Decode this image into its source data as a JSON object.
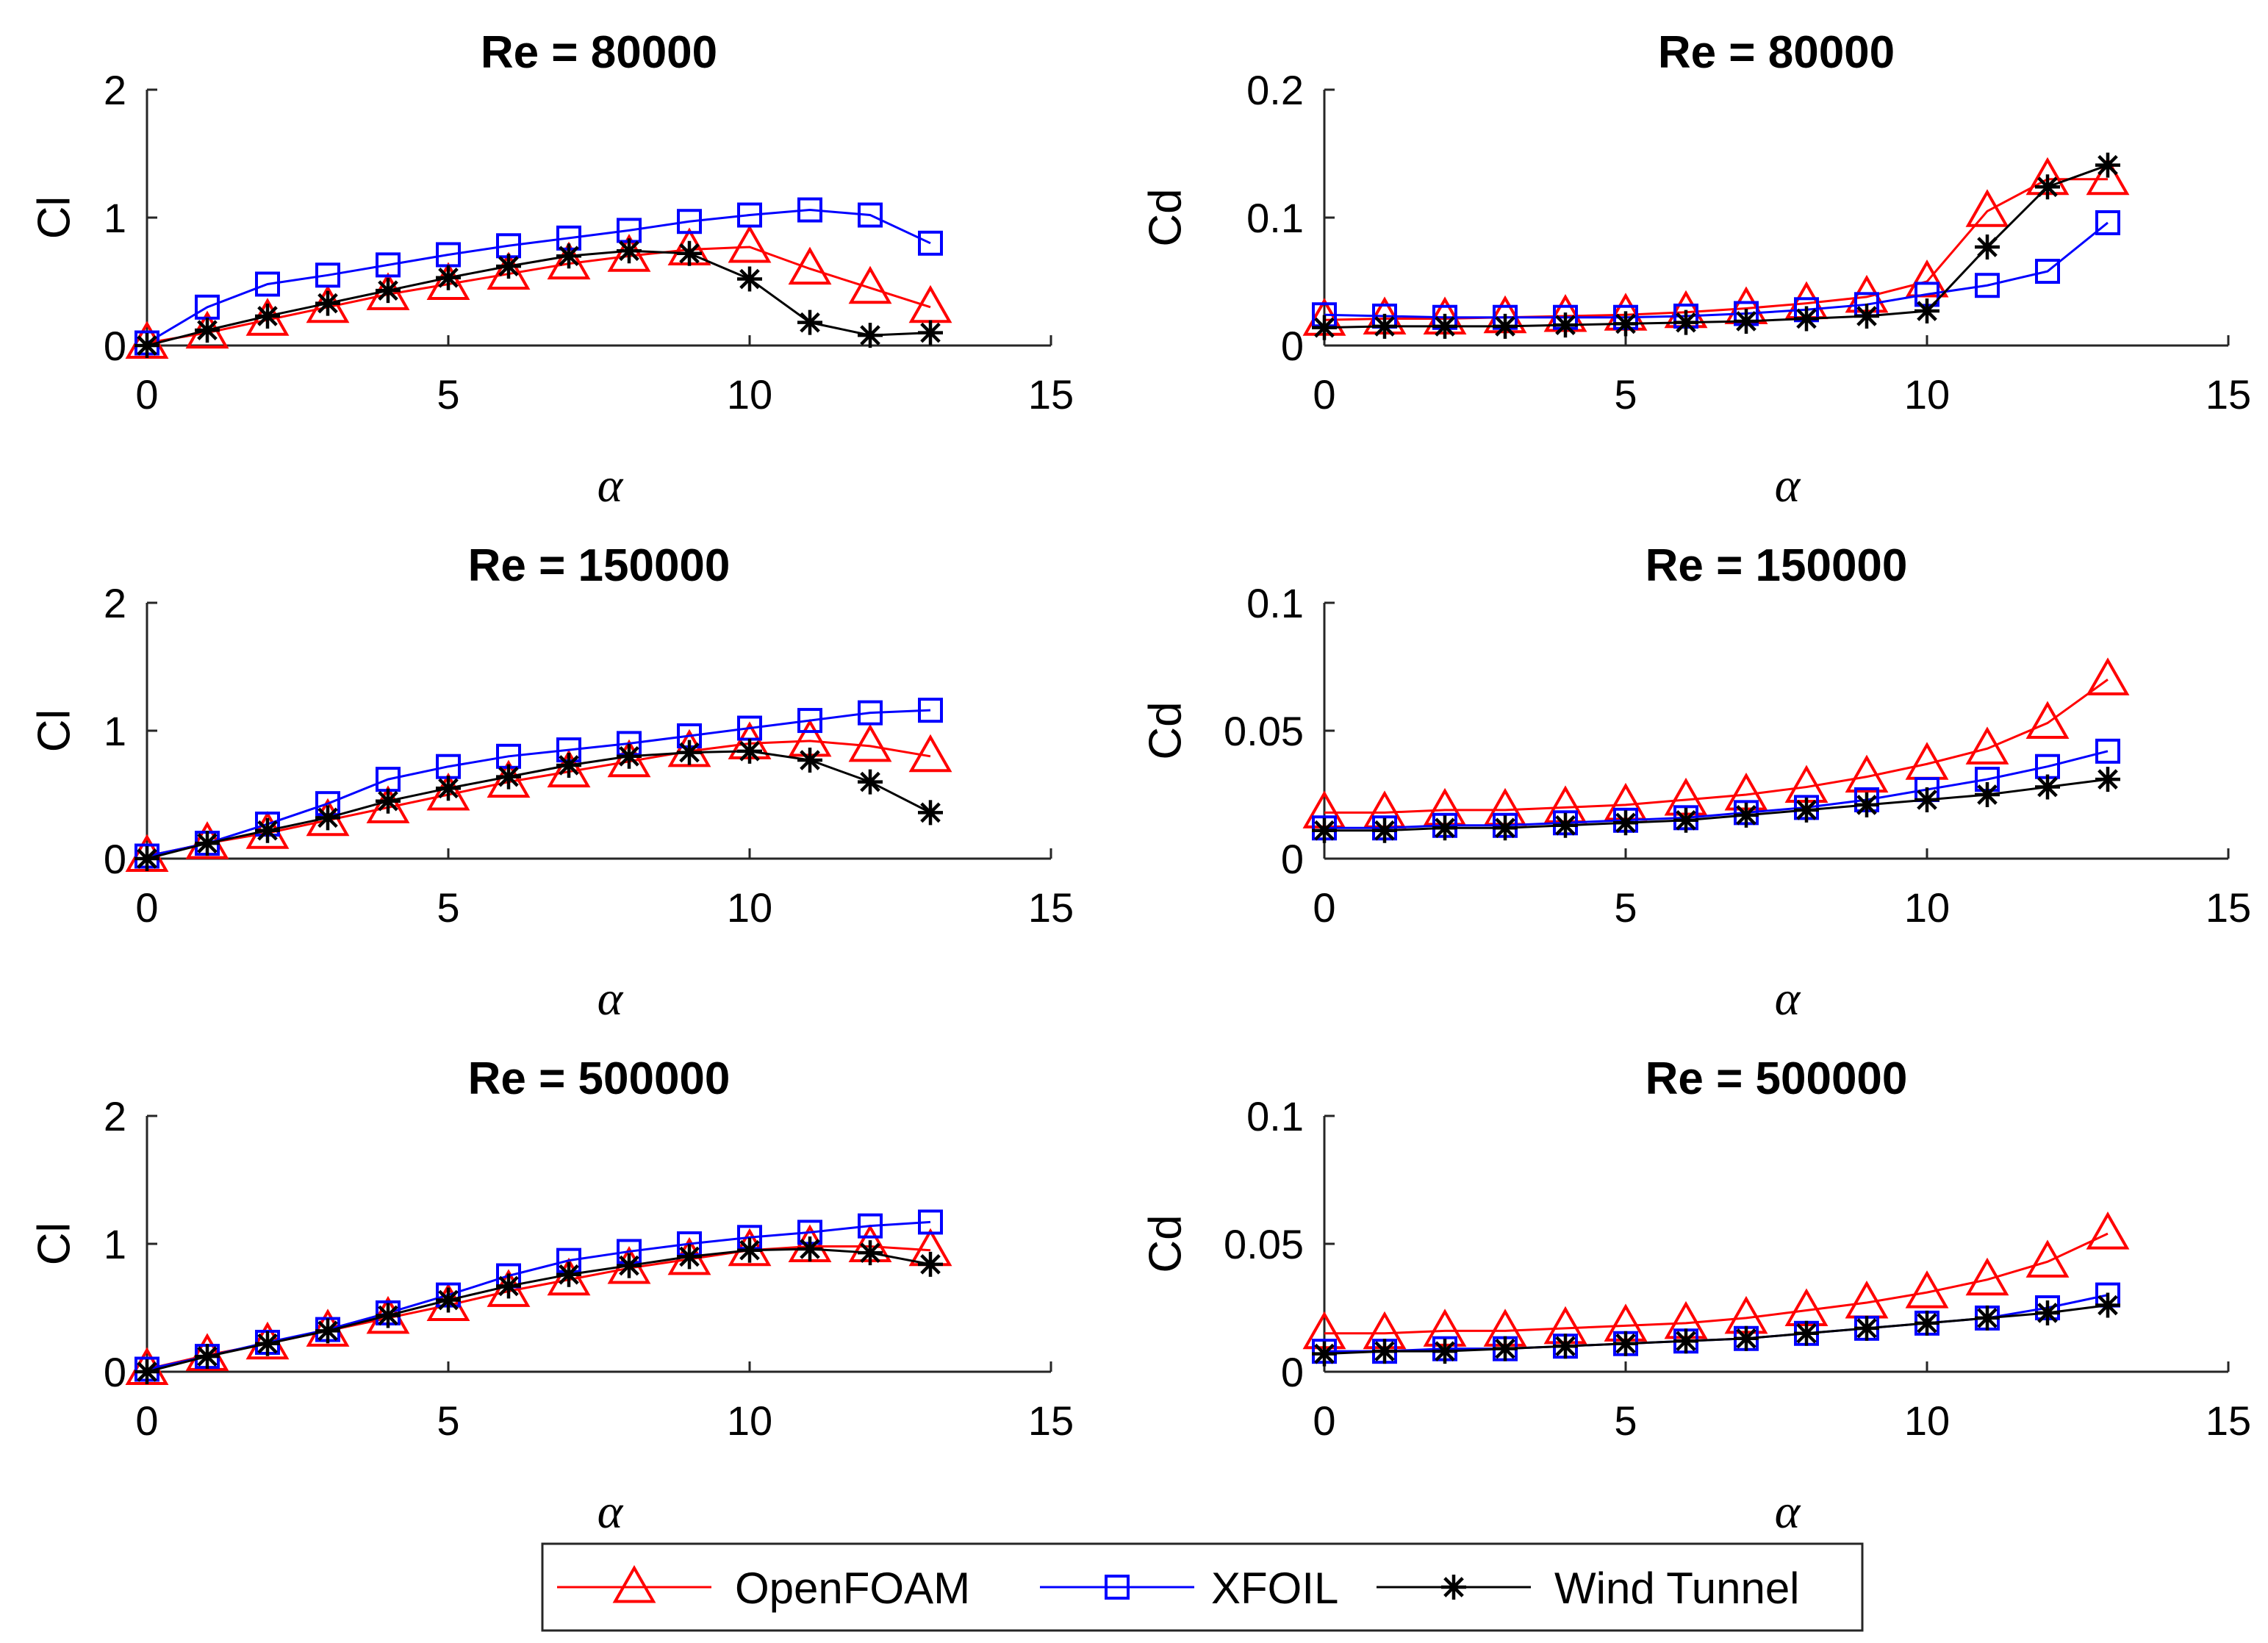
{
  "chart_data": [
    {
      "type": "line",
      "title": "Re = 80000",
      "xlabel": "α",
      "ylabel": "Cl",
      "xlim": [
        0,
        15
      ],
      "ylim": [
        0,
        2
      ],
      "xticks": [
        0,
        5,
        10,
        15
      ],
      "yticks": [
        0,
        1,
        2
      ],
      "yticklabels": [
        "0",
        "1",
        "2"
      ],
      "x": [
        0,
        1,
        2,
        3,
        4,
        5,
        6,
        7,
        8,
        9,
        10,
        11,
        12,
        13
      ],
      "series": [
        {
          "name": "OpenFOAM",
          "values": [
            0.02,
            0.1,
            0.2,
            0.3,
            0.4,
            0.48,
            0.56,
            0.64,
            0.7,
            0.75,
            0.77,
            0.6,
            0.45,
            0.3
          ]
        },
        {
          "name": "XFOIL",
          "values": [
            0.02,
            0.3,
            0.48,
            0.55,
            0.63,
            0.71,
            0.78,
            0.84,
            0.9,
            0.97,
            1.02,
            1.06,
            1.02,
            0.8
          ]
        },
        {
          "name": "Wind Tunnel",
          "values": [
            0.0,
            0.12,
            0.23,
            0.33,
            0.43,
            0.53,
            0.62,
            0.7,
            0.74,
            0.72,
            0.52,
            0.18,
            0.08,
            0.1
          ]
        }
      ]
    },
    {
      "type": "line",
      "title": "Re = 80000",
      "xlabel": "α",
      "ylabel": "Cd",
      "xlim": [
        0,
        15
      ],
      "ylim": [
        0,
        0.2
      ],
      "xticks": [
        0,
        5,
        10,
        15
      ],
      "yticks": [
        0,
        0.1,
        0.2
      ],
      "yticklabels": [
        "0",
        "0.1",
        "0.2"
      ],
      "x": [
        0,
        1,
        2,
        3,
        4,
        5,
        6,
        7,
        8,
        9,
        10,
        11,
        12,
        13
      ],
      "series": [
        {
          "name": "OpenFOAM",
          "values": [
            0.02,
            0.021,
            0.021,
            0.022,
            0.023,
            0.024,
            0.026,
            0.029,
            0.033,
            0.038,
            0.05,
            0.105,
            0.13,
            0.13
          ]
        },
        {
          "name": "XFOIL",
          "values": [
            0.024,
            0.023,
            0.022,
            0.022,
            0.022,
            0.022,
            0.023,
            0.025,
            0.028,
            0.032,
            0.04,
            0.047,
            0.058,
            0.096
          ]
        },
        {
          "name": "Wind Tunnel",
          "values": [
            0.014,
            0.015,
            0.015,
            0.015,
            0.016,
            0.017,
            0.018,
            0.019,
            0.021,
            0.023,
            0.027,
            0.077,
            0.124,
            0.141
          ]
        }
      ]
    },
    {
      "type": "line",
      "title": "Re = 150000",
      "xlabel": "α",
      "ylabel": "Cl",
      "xlim": [
        0,
        15
      ],
      "ylim": [
        0,
        2
      ],
      "xticks": [
        0,
        5,
        10,
        15
      ],
      "yticks": [
        0,
        1,
        2
      ],
      "yticklabels": [
        "0",
        "1",
        "2"
      ],
      "x": [
        0,
        1,
        2,
        3,
        4,
        5,
        6,
        7,
        8,
        9,
        10,
        11,
        12,
        13
      ],
      "series": [
        {
          "name": "OpenFOAM",
          "values": [
            0.02,
            0.12,
            0.2,
            0.3,
            0.4,
            0.5,
            0.6,
            0.68,
            0.76,
            0.84,
            0.9,
            0.92,
            0.88,
            0.8
          ]
        },
        {
          "name": "XFOIL",
          "values": [
            0.02,
            0.12,
            0.27,
            0.43,
            0.62,
            0.72,
            0.8,
            0.85,
            0.9,
            0.96,
            1.02,
            1.08,
            1.14,
            1.16
          ]
        },
        {
          "name": "Wind Tunnel",
          "values": [
            0.0,
            0.12,
            0.22,
            0.32,
            0.45,
            0.55,
            0.64,
            0.73,
            0.8,
            0.83,
            0.84,
            0.77,
            0.6,
            0.36
          ]
        }
      ]
    },
    {
      "type": "line",
      "title": "Re = 150000",
      "xlabel": "α",
      "ylabel": "Cd",
      "xlim": [
        0,
        15
      ],
      "ylim": [
        0,
        0.1
      ],
      "xticks": [
        0,
        5,
        10,
        15
      ],
      "yticks": [
        0,
        0.05,
        0.1
      ],
      "yticklabels": [
        "0",
        "0.05",
        "0.1"
      ],
      "x": [
        0,
        1,
        2,
        3,
        4,
        5,
        6,
        7,
        8,
        9,
        10,
        11,
        12,
        13
      ],
      "series": [
        {
          "name": "OpenFOAM",
          "values": [
            0.018,
            0.018,
            0.019,
            0.019,
            0.02,
            0.021,
            0.023,
            0.025,
            0.028,
            0.032,
            0.037,
            0.043,
            0.053,
            0.07
          ]
        },
        {
          "name": "XFOIL",
          "values": [
            0.012,
            0.012,
            0.013,
            0.013,
            0.014,
            0.015,
            0.016,
            0.018,
            0.02,
            0.023,
            0.027,
            0.031,
            0.036,
            0.042
          ]
        },
        {
          "name": "Wind Tunnel",
          "values": [
            0.011,
            0.011,
            0.012,
            0.012,
            0.013,
            0.014,
            0.015,
            0.017,
            0.019,
            0.021,
            0.023,
            0.025,
            0.028,
            0.031
          ]
        }
      ]
    },
    {
      "type": "line",
      "title": "Re = 500000",
      "xlabel": "α",
      "ylabel": "Cl",
      "xlim": [
        0,
        15
      ],
      "ylim": [
        0,
        2
      ],
      "xticks": [
        0,
        5,
        10,
        15
      ],
      "yticks": [
        0,
        1,
        2
      ],
      "yticklabels": [
        "0",
        "1",
        "2"
      ],
      "x": [
        0,
        1,
        2,
        3,
        4,
        5,
        6,
        7,
        8,
        9,
        10,
        11,
        12,
        13
      ],
      "series": [
        {
          "name": "OpenFOAM",
          "values": [
            0.02,
            0.13,
            0.22,
            0.32,
            0.42,
            0.52,
            0.63,
            0.72,
            0.81,
            0.88,
            0.95,
            0.98,
            0.98,
            0.95
          ]
        },
        {
          "name": "XFOIL",
          "values": [
            0.02,
            0.12,
            0.23,
            0.33,
            0.46,
            0.6,
            0.75,
            0.87,
            0.94,
            1.0,
            1.05,
            1.09,
            1.14,
            1.17
          ]
        },
        {
          "name": "Wind Tunnel",
          "values": [
            0.0,
            0.12,
            0.22,
            0.32,
            0.44,
            0.56,
            0.67,
            0.76,
            0.83,
            0.9,
            0.95,
            0.96,
            0.93,
            0.84
          ]
        }
      ]
    },
    {
      "type": "line",
      "title": "Re = 500000",
      "xlabel": "α",
      "ylabel": "Cd",
      "xlim": [
        0,
        15
      ],
      "ylim": [
        0,
        0.1
      ],
      "xticks": [
        0,
        5,
        10,
        15
      ],
      "yticks": [
        0,
        0.05,
        0.1
      ],
      "yticklabels": [
        "0",
        "0.05",
        "0.1"
      ],
      "x": [
        0,
        1,
        2,
        3,
        4,
        5,
        6,
        7,
        8,
        9,
        10,
        11,
        12,
        13
      ],
      "series": [
        {
          "name": "OpenFOAM",
          "values": [
            0.015,
            0.015,
            0.016,
            0.016,
            0.017,
            0.018,
            0.019,
            0.021,
            0.024,
            0.027,
            0.031,
            0.036,
            0.043,
            0.054
          ]
        },
        {
          "name": "XFOIL",
          "values": [
            0.008,
            0.008,
            0.009,
            0.009,
            0.01,
            0.011,
            0.012,
            0.013,
            0.015,
            0.017,
            0.019,
            0.021,
            0.025,
            0.03
          ]
        },
        {
          "name": "Wind Tunnel",
          "values": [
            0.007,
            0.008,
            0.008,
            0.009,
            0.01,
            0.011,
            0.012,
            0.013,
            0.015,
            0.017,
            0.019,
            0.021,
            0.023,
            0.026
          ]
        }
      ]
    }
  ],
  "legend": {
    "placement": "bottom-center",
    "entries": [
      {
        "label": "OpenFOAM",
        "color": "#ff0000",
        "marker": "triangle"
      },
      {
        "label": "XFOIL",
        "color": "#0000ff",
        "marker": "square"
      },
      {
        "label": "Wind Tunnel",
        "color": "#000000",
        "marker": "asterisk"
      }
    ]
  }
}
